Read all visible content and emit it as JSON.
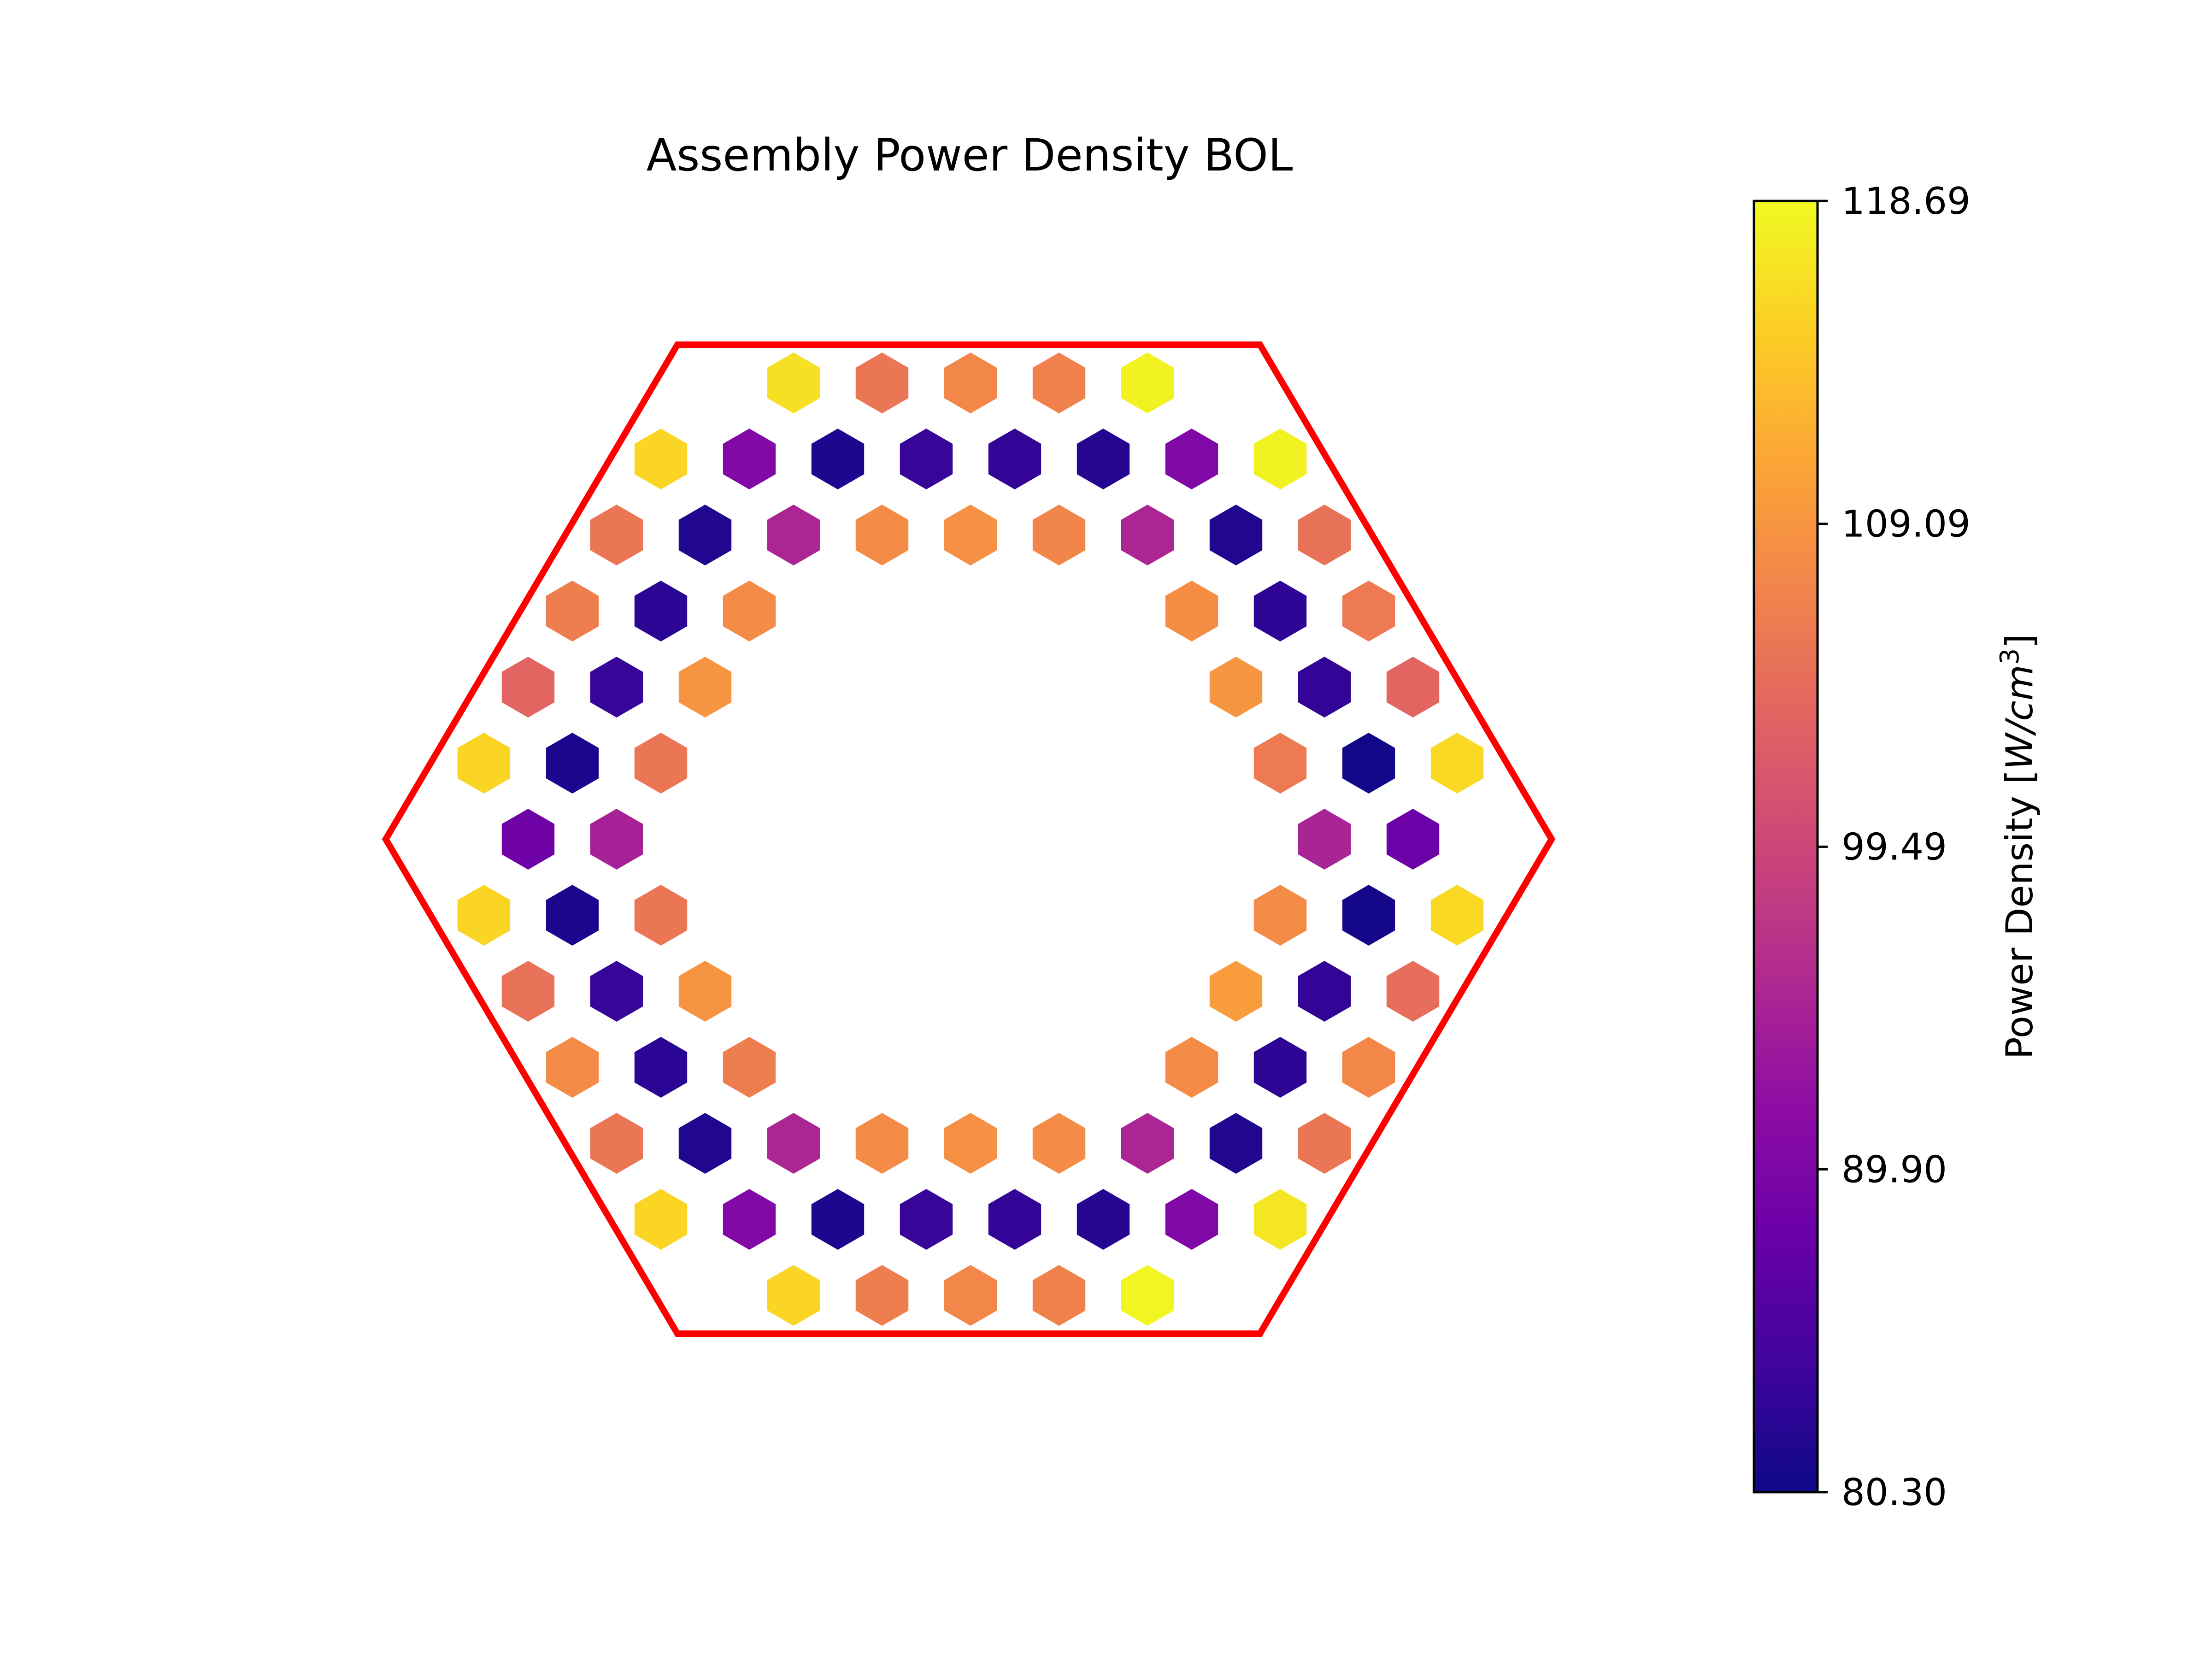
{
  "chart_data": {
    "type": "heatmap",
    "subtype": "hexagonal-assembly-map",
    "title": "Assembly Power Density BOL",
    "colorbar": {
      "label": "Power Density",
      "unit": "[W/cm³]",
      "unit_base": "W/cm",
      "unit_exp": "3",
      "min": 80.3,
      "max": 118.69,
      "ticks": [
        "118.69",
        "109.09",
        "99.49",
        "89.90",
        "80.30"
      ],
      "tick_values": [
        118.69,
        109.09,
        99.49,
        89.9,
        80.3
      ],
      "colormap": "plasma"
    },
    "boundary_color": "#ff0000",
    "grid": false,
    "axes_visible": false,
    "rows": [
      {
        "columns": [
          -2,
          -1,
          0,
          1,
          2
        ],
        "values": [
          116.5,
          105.5,
          107.5,
          106.8,
          118.0
        ]
      },
      {
        "columns": [
          -3.5,
          -2.5,
          -1.5,
          -0.5,
          0.5,
          1.5,
          2.5,
          3.5
        ],
        "values": [
          115.5,
          90.5,
          81.5,
          83.5,
          83.0,
          82.0,
          90.3,
          118.0
        ]
      },
      {
        "columns": [
          -4,
          -3,
          -2,
          -1,
          0,
          1,
          2,
          3,
          4
        ],
        "values": [
          105.5,
          81.8,
          95.0,
          108.0,
          108.5,
          107.3,
          95.0,
          81.8,
          105.0
        ]
      },
      {
        "columns": [
          -4.5,
          -3.5,
          -2.5,
          2.5,
          3.5,
          4.5
        ],
        "values": [
          106.5,
          82.5,
          108.0,
          108.2,
          82.8,
          106.0
        ]
      },
      {
        "columns": [
          -5,
          -4,
          -3,
          3,
          4,
          5
        ],
        "values": [
          103.5,
          83.5,
          109.0,
          109.2,
          83.0,
          103.5
        ]
      },
      {
        "columns": [
          -5.5,
          -4.5,
          -3.5,
          3.5,
          4.5,
          5.5
        ],
        "values": [
          115.5,
          81.3,
          105.5,
          106.0,
          80.5,
          115.8
        ]
      },
      {
        "columns": [
          -5,
          -4,
          4,
          5
        ],
        "values": [
          88.5,
          94.5,
          94.8,
          88.3
        ]
      },
      {
        "columns": [
          -5.5,
          -4.5,
          -3.5,
          3.5,
          4.5,
          5.5
        ],
        "values": [
          115.5,
          81.3,
          105.5,
          108.0,
          80.8,
          115.8
        ]
      },
      {
        "columns": [
          -5,
          -4,
          -3,
          3,
          4,
          5
        ],
        "values": [
          105.0,
          83.5,
          109.0,
          110.0,
          83.0,
          104.5
        ]
      },
      {
        "columns": [
          -4.5,
          -3.5,
          -2.5,
          2.5,
          3.5,
          4.5
        ],
        "values": [
          108.0,
          82.5,
          106.5,
          108.0,
          82.8,
          107.5
        ]
      },
      {
        "columns": [
          -4,
          -3,
          -2,
          -1,
          0,
          1,
          2,
          3,
          4
        ],
        "values": [
          105.5,
          81.8,
          95.0,
          108.0,
          108.5,
          108.0,
          95.0,
          81.8,
          105.5
        ]
      },
      {
        "columns": [
          -3.5,
          -2.5,
          -1.5,
          -0.5,
          0.5,
          1.5,
          2.5,
          3.5
        ],
        "values": [
          115.5,
          90.5,
          81.5,
          83.5,
          83.0,
          82.0,
          90.3,
          117.0
        ]
      },
      {
        "columns": [
          -2,
          -1,
          0,
          1,
          2
        ],
        "values": [
          115.5,
          106.5,
          107.5,
          106.8,
          118.3
        ]
      }
    ]
  }
}
